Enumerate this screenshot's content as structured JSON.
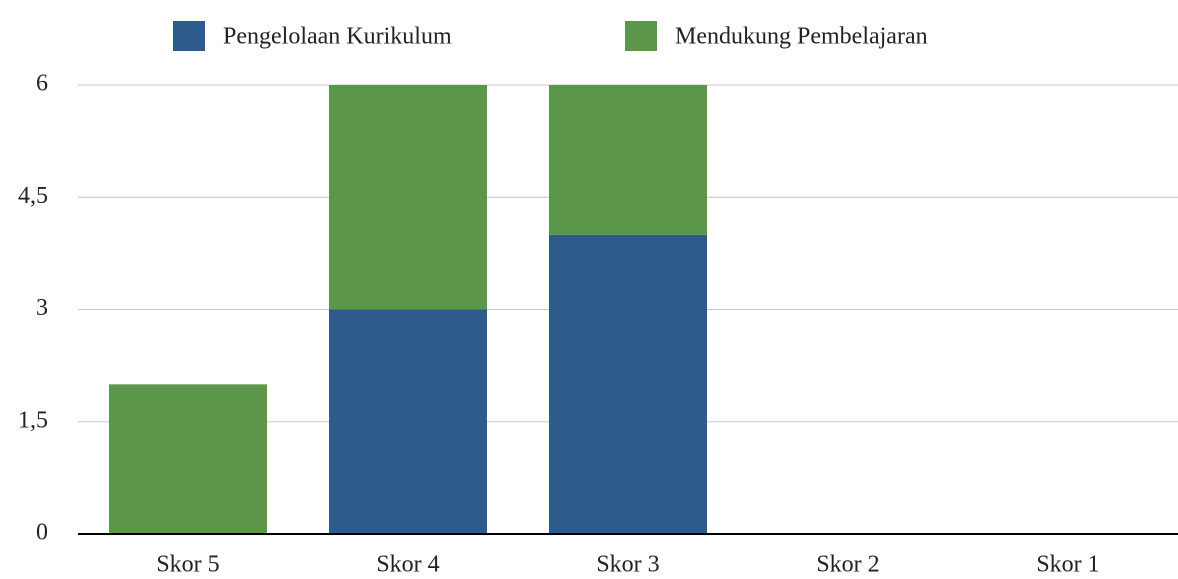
{
  "chart_data": {
    "type": "stacked_bar",
    "categories": [
      "Skor 5",
      "Skor 4",
      "Skor 3",
      "Skor 2",
      "Skor 1"
    ],
    "series": [
      {
        "name": "Pengelolaan Kurikulum",
        "color": "#2e5a8c",
        "values": [
          0,
          3,
          4,
          0,
          0
        ]
      },
      {
        "name": "Mendukung Pembelajaran",
        "color": "#5c9649",
        "values": [
          2,
          3,
          2,
          0,
          0
        ]
      }
    ],
    "ylim": [
      0,
      6
    ],
    "yticks": [
      0,
      {
        "value": 1.5,
        "label": "1,5"
      },
      3,
      {
        "value": 4.5,
        "label": "4,5"
      },
      6
    ],
    "grid": true,
    "legend": "top"
  }
}
